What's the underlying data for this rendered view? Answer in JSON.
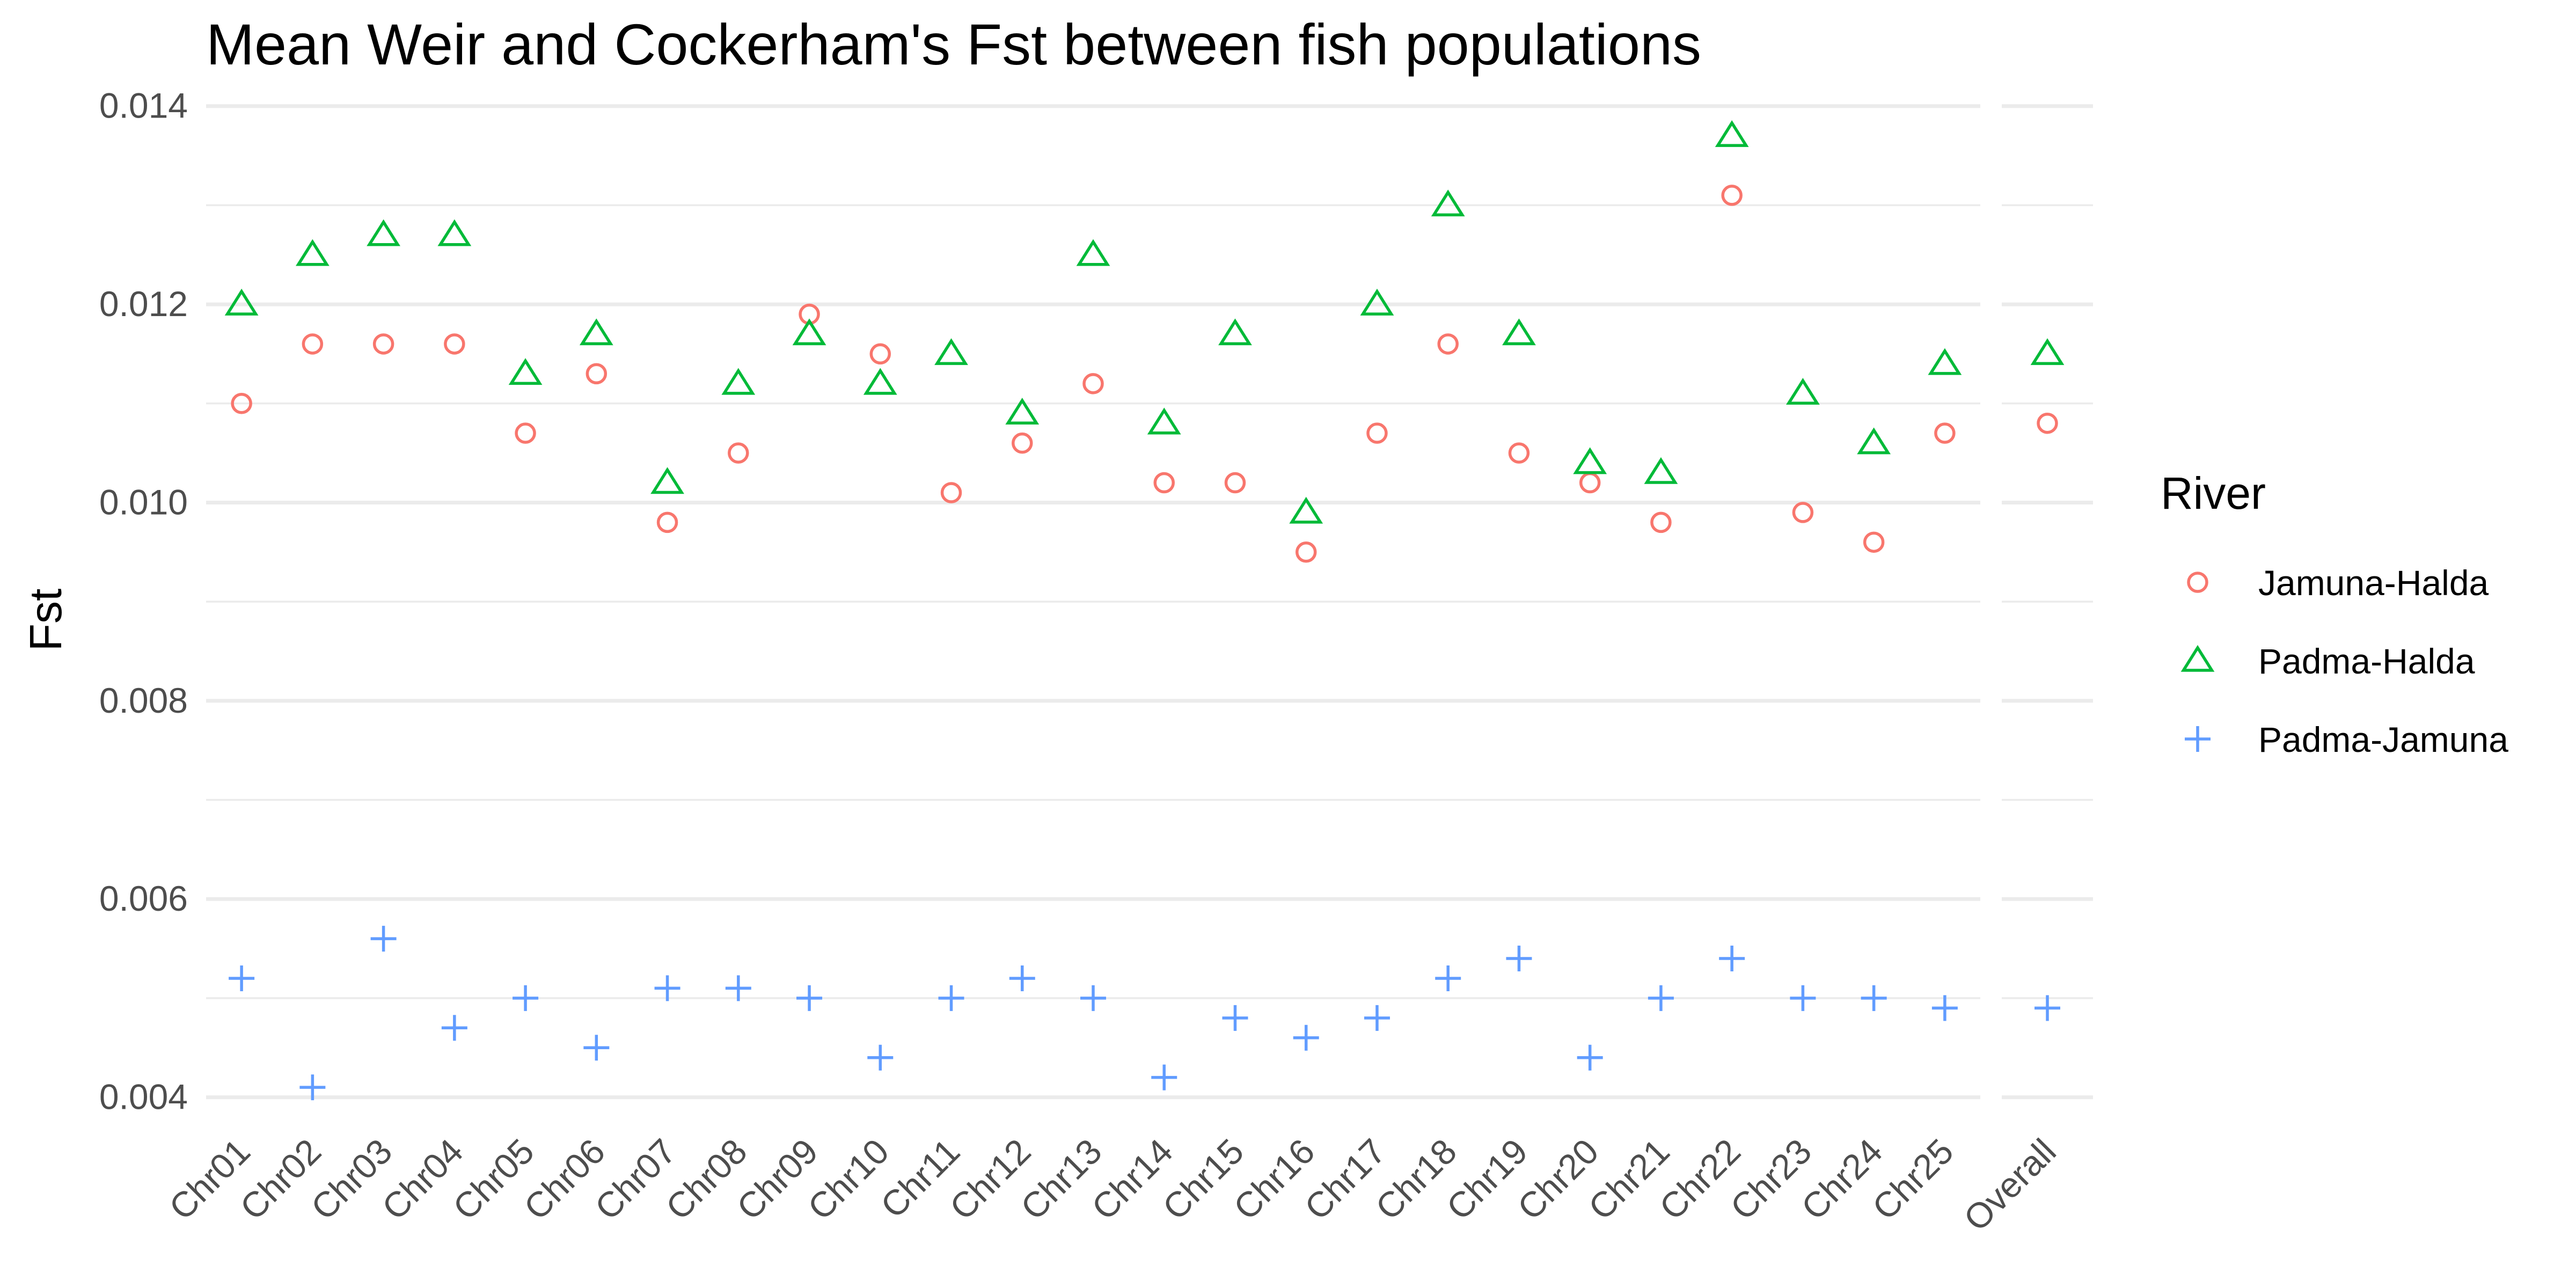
{
  "chart_data": {
    "type": "scatter",
    "title": "Mean Weir and Cockerham's Fst between fish populations",
    "xlabel": "",
    "ylabel": "Fst",
    "ylim": [
      0.0037,
      0.01415
    ],
    "y_ticks": [
      "0.004",
      "0.006",
      "0.008",
      "0.010",
      "0.012",
      "0.014"
    ],
    "y_tick_values": [
      0.004,
      0.006,
      0.008,
      0.01,
      0.012,
      0.014
    ],
    "grid": true,
    "legend_position": "right",
    "panels": [
      {
        "categories": [
          "Chr01",
          "Chr02",
          "Chr03",
          "Chr04",
          "Chr05",
          "Chr06",
          "Chr07",
          "Chr08",
          "Chr09",
          "Chr10",
          "Chr11",
          "Chr12",
          "Chr13",
          "Chr14",
          "Chr15",
          "Chr16",
          "Chr17",
          "Chr18",
          "Chr19",
          "Chr20",
          "Chr21",
          "Chr22",
          "Chr23",
          "Chr24",
          "Chr25"
        ]
      },
      {
        "categories": [
          "Overall"
        ]
      }
    ],
    "legend": {
      "title": "River",
      "entries": [
        "Jamuna-Halda",
        "Padma-Halda",
        "Padma-Jamuna"
      ]
    },
    "series": [
      {
        "name": "Jamuna-Halda",
        "shape": "circle",
        "color": "#F8766D",
        "values": [
          0.011,
          0.0116,
          0.0116,
          0.0116,
          0.0107,
          0.0113,
          0.0098,
          0.0105,
          0.0119,
          0.0115,
          0.0101,
          0.0106,
          0.0112,
          0.0102,
          0.0102,
          0.0095,
          0.0107,
          0.0116,
          0.0105,
          0.0102,
          0.0098,
          0.0131,
          0.0099,
          0.0096,
          0.0107
        ],
        "overall": 0.0108
      },
      {
        "name": "Padma-Halda",
        "shape": "triangle",
        "color": "#00BA38",
        "values": [
          0.012,
          0.0125,
          0.0127,
          0.0127,
          0.0113,
          0.0117,
          0.0102,
          0.0112,
          0.0117,
          0.0112,
          0.0115,
          0.0109,
          0.0125,
          0.0108,
          0.0117,
          0.0099,
          0.012,
          0.013,
          0.0117,
          0.0104,
          0.0103,
          0.0137,
          0.0111,
          0.0106,
          0.0114
        ],
        "overall": 0.0115
      },
      {
        "name": "Padma-Jamuna",
        "shape": "plus",
        "color": "#619CFF",
        "values": [
          0.0052,
          0.0041,
          0.0056,
          0.0047,
          0.005,
          0.0045,
          0.0051,
          0.0051,
          0.005,
          0.0044,
          0.005,
          0.0052,
          0.005,
          0.0042,
          0.0048,
          0.0046,
          0.0048,
          0.0052,
          0.0054,
          0.0044,
          0.005,
          0.0054,
          0.005,
          0.005,
          0.0049
        ],
        "overall": 0.0049
      }
    ]
  }
}
